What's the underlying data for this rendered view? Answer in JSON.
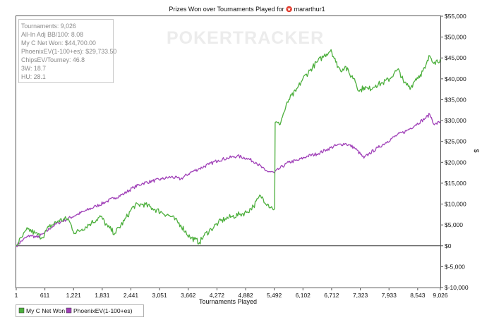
{
  "chart_data": {
    "type": "line",
    "title": "Prizes Won over Tournaments Played for",
    "player": "mararthur1",
    "player_icon": "pokerstars-icon",
    "watermark": "POKERTRACKER",
    "xlabel": "Tournaments Played",
    "ylabel": "$",
    "xlim": [
      1,
      9026
    ],
    "ylim": [
      -10000,
      55000
    ],
    "x_ticks": [
      "1",
      "611",
      "1,221",
      "1,831",
      "2,441",
      "3,051",
      "3,662",
      "4,272",
      "4,882",
      "5,492",
      "6,102",
      "6,712",
      "7,323",
      "7,933",
      "8,543",
      "9,026"
    ],
    "y_ticks": [
      "$-10,000",
      "$-5,000",
      "$0",
      "$5,000",
      "$10,000",
      "$15,000",
      "$20,000",
      "$25,000",
      "$30,000",
      "$35,000",
      "$40,000",
      "$45,000",
      "$50,000",
      "$55,000"
    ],
    "grid": false,
    "legend_position": "bottom-left",
    "stats": [
      "Tournaments: 9,026",
      "All-In Adj BB/100: 8.08",
      "My C Net Won: $44,700.00",
      "PhoenixEV(1-100+es): $29,733.50",
      "ChipsEV/Tourney: 46.8",
      "3W: 18.7",
      "HU: 28.1"
    ],
    "series": [
      {
        "name": "My C Net Won",
        "color": "#4caf3c",
        "x": [
          1,
          120,
          250,
          400,
          550,
          700,
          900,
          1100,
          1250,
          1400,
          1600,
          1800,
          1950,
          2100,
          2300,
          2500,
          2700,
          2900,
          3100,
          3300,
          3500,
          3700,
          3800,
          3900,
          4000,
          4150,
          4300,
          4450,
          4600,
          4750,
          4900,
          5050,
          5200,
          5350,
          5450,
          5500,
          5510,
          5600,
          5700,
          5800,
          5950,
          6100,
          6250,
          6400,
          6550,
          6700,
          6800,
          6900,
          7000,
          7100,
          7200,
          7300,
          7400,
          7500,
          7650,
          7800,
          7950,
          8050,
          8150,
          8250,
          8400,
          8500,
          8600,
          8700,
          8800,
          8900,
          9026
        ],
        "y": [
          0,
          2000,
          4000,
          3000,
          2000,
          4500,
          6000,
          6500,
          3000,
          4000,
          5500,
          7000,
          4500,
          3000,
          6000,
          9500,
          10000,
          9000,
          8000,
          7000,
          5000,
          2000,
          1500,
          800,
          2500,
          4000,
          5500,
          6500,
          7000,
          7500,
          8000,
          9500,
          12000,
          10000,
          9000,
          9000,
          29500,
          29000,
          32000,
          35000,
          37000,
          40000,
          42000,
          44000,
          45500,
          47000,
          44000,
          42000,
          43000,
          41000,
          40000,
          37000,
          38000,
          37500,
          38500,
          39000,
          40000,
          41500,
          42000,
          39000,
          38000,
          40000,
          41000,
          42500,
          45500,
          44000,
          44700
        ]
      },
      {
        "name": "PhoenixEV(1-100+es)",
        "color": "#a040b8",
        "x": [
          1,
          150,
          300,
          450,
          600,
          750,
          900,
          1100,
          1300,
          1500,
          1700,
          1900,
          2100,
          2300,
          2500,
          2700,
          2900,
          3100,
          3300,
          3500,
          3700,
          3900,
          4100,
          4300,
          4500,
          4700,
          4900,
          5100,
          5300,
          5492,
          5600,
          5800,
          6000,
          6200,
          6400,
          6600,
          6800,
          7000,
          7200,
          7400,
          7500,
          7700,
          7900,
          8100,
          8300,
          8500,
          8700,
          8800,
          8900,
          9026
        ],
        "y": [
          0,
          1500,
          2500,
          2000,
          3000,
          4500,
          5500,
          6500,
          7500,
          8500,
          9500,
          10500,
          11500,
          12500,
          14000,
          15000,
          15500,
          16000,
          16500,
          16000,
          17500,
          18500,
          19500,
          20500,
          21000,
          21500,
          21000,
          20000,
          18000,
          17500,
          18500,
          20000,
          20500,
          21500,
          22000,
          23000,
          24000,
          24500,
          23500,
          21000,
          22000,
          23500,
          25000,
          26500,
          27500,
          29000,
          30500,
          31500,
          29000,
          29733.5
        ]
      }
    ]
  }
}
